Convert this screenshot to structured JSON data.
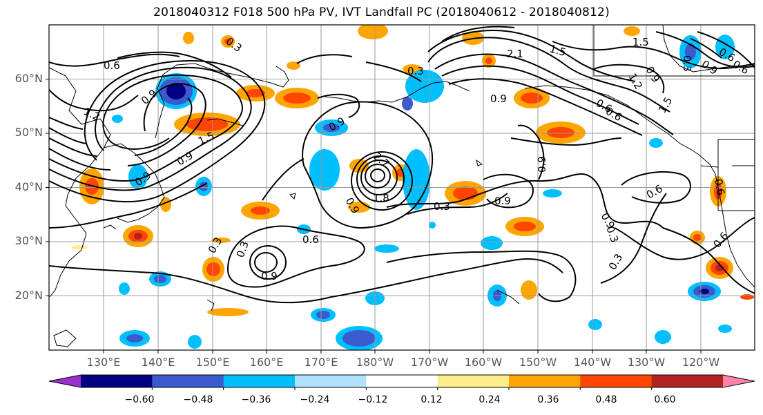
{
  "title": "2018040312 F018 500 hPa PV, IVT Landfall PC (2018040612 - 2018040812)",
  "lat_labels": [
    "60°N",
    "50°N",
    "40°N",
    "30°N",
    "20°N"
  ],
  "lon_labels": [
    "130°E",
    "140°E",
    "150°E",
    "160°E",
    "170°E",
    "180°W",
    "170°W",
    "160°W",
    "150°W",
    "140°W",
    "130°W",
    "120°W"
  ],
  "contour_labels": [
    "0.6",
    "0.3",
    "0.3",
    "0.3",
    "1.2",
    "1.2",
    "0.9",
    "0.9",
    "0.9",
    "0.9",
    "0.9",
    "0.9",
    "0.9",
    "0.9",
    "0.9",
    "1.5",
    "1.5",
    "1.5",
    "1.5",
    "1.8",
    "2.1",
    "2.7",
    "0.6",
    "0.6",
    "0.6",
    "0.6",
    "0.6",
    "0.6",
    "0.6",
    "0.3",
    "0.3",
    "0.3",
    "0.3",
    "0.3",
    "0.9",
    "0.9",
    "0.6",
    "0.9"
  ],
  "colorbar": {
    "colors": [
      "#9932cc",
      "#000080",
      "#3a5acd",
      "#00bfff",
      "#b0e2ff",
      "#ffffff",
      "#ffec8b",
      "#ffa500",
      "#ff4500",
      "#b22222",
      "#ff82ab"
    ],
    "ticks": [
      "−0.60",
      "−0.48",
      "−0.36",
      "−0.24",
      "−0.12",
      "0.12",
      "0.24",
      "0.36",
      "0.48",
      "0.60"
    ]
  },
  "grid": "on"
}
